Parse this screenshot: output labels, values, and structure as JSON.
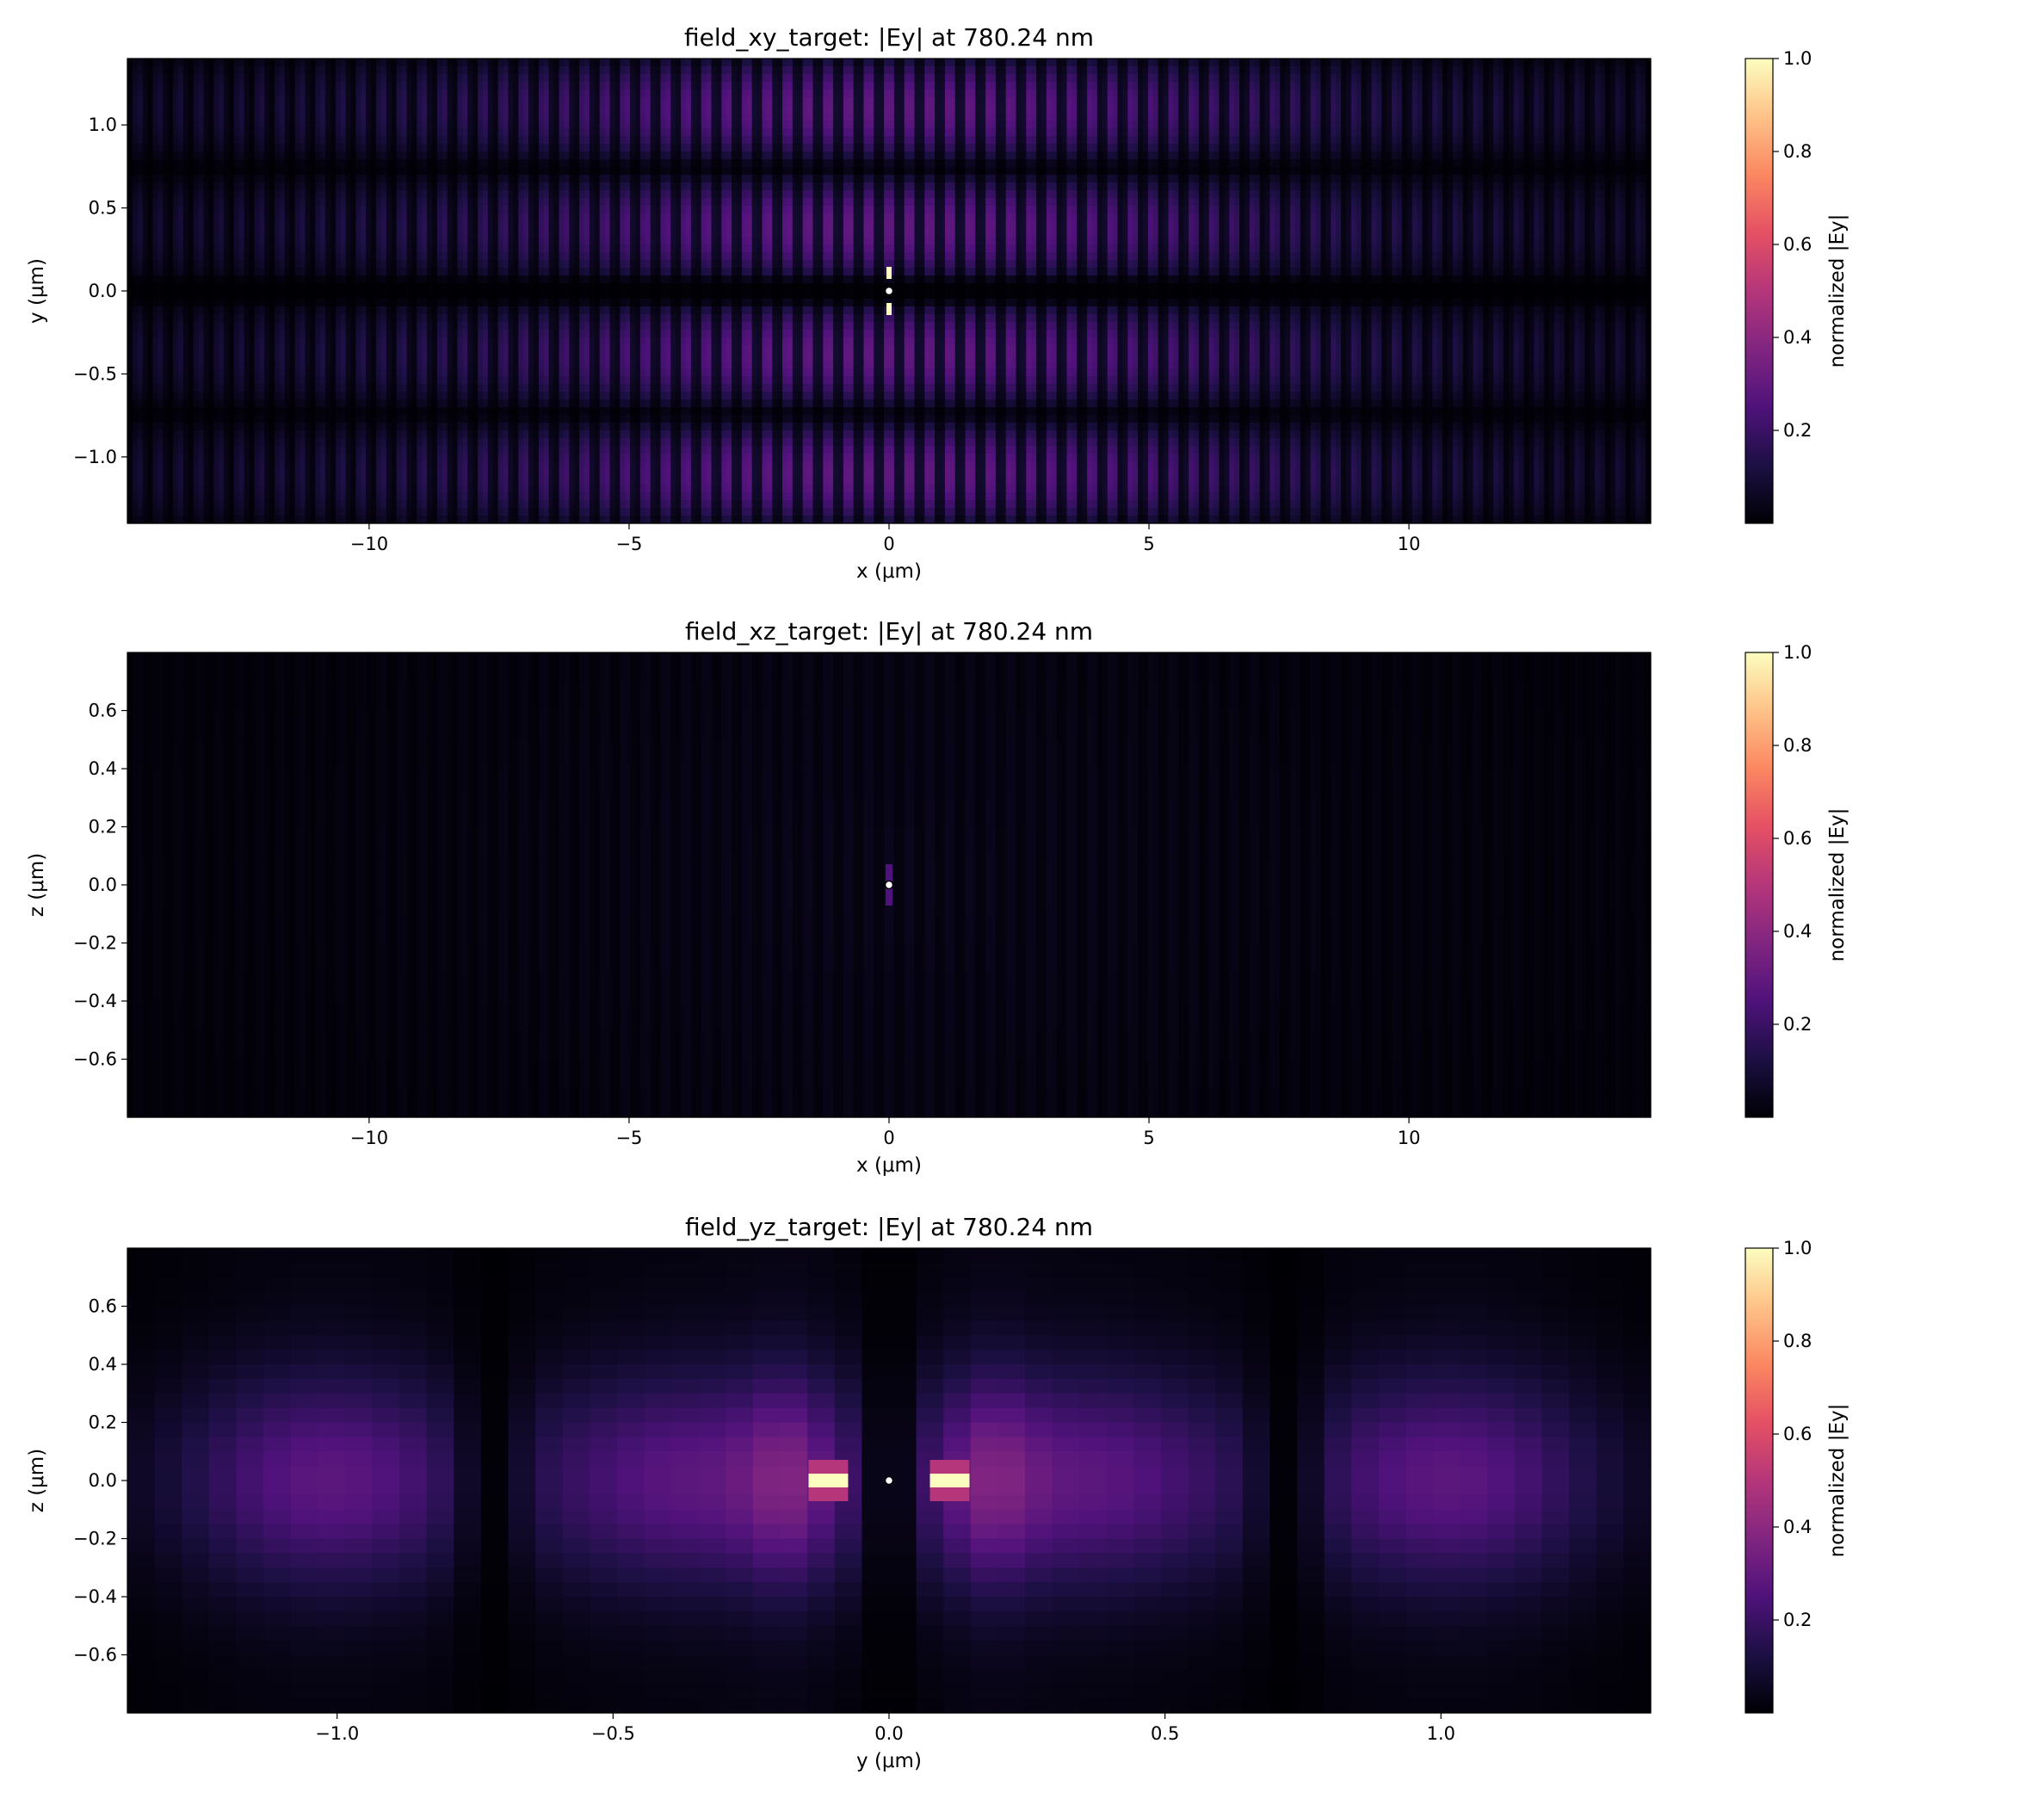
{
  "figure": {
    "colormap": "magma",
    "colormap_stops": [
      "#000004",
      "#1c1044",
      "#4f127b",
      "#812581",
      "#b5367a",
      "#e55064",
      "#fb8761",
      "#fec287",
      "#fcfdbf"
    ],
    "marker_colors": {
      "fill": "#ffffff",
      "edge": "#000000"
    }
  },
  "chart_data": [
    {
      "type": "heatmap",
      "title": "field_xy_target: |Ey| at 780.24 nm",
      "xlabel": "x (μm)",
      "ylabel": "y (μm)",
      "xlim": [
        -14.65,
        14.65
      ],
      "ylim": [
        -1.4,
        1.4
      ],
      "xticks": [
        -10,
        -5,
        0,
        5,
        10
      ],
      "xtick_labels": [
        "−10",
        "−5",
        "0",
        "5",
        "10"
      ],
      "yticks": [
        -1.0,
        -0.5,
        0.0,
        0.5,
        1.0
      ],
      "ytick_labels": [
        "−1.0",
        "−0.5",
        "0.0",
        "0.5",
        "1.0"
      ],
      "grid": false,
      "field_model": {
        "kind": "standing_wave_xy",
        "x_period_um": 0.39,
        "y_lobe_spacing_um": 0.72,
        "envelope_sigma_um": 6.0,
        "peak_level": 0.28
      },
      "hotspot": {
        "x": 0,
        "y": 0,
        "value": 1.0
      },
      "marker": {
        "x": 0,
        "y": 0
      },
      "colorbar": {
        "label": "normalized |Ey|",
        "range": [
          0.0,
          1.0
        ],
        "ticks": [
          0.2,
          0.4,
          0.6,
          0.8,
          1.0
        ],
        "tick_labels": [
          "0.2",
          "0.4",
          "0.6",
          "0.8",
          "1.0"
        ]
      }
    },
    {
      "type": "heatmap",
      "title": "field_xz_target: |Ey| at 780.24 nm",
      "xlabel": "x (μm)",
      "ylabel": "z (μm)",
      "xlim": [
        -14.65,
        14.65
      ],
      "ylim": [
        -0.8,
        0.8
      ],
      "xticks": [
        -10,
        -5,
        0,
        5,
        10
      ],
      "xtick_labels": [
        "−10",
        "−5",
        "0",
        "5",
        "10"
      ],
      "yticks": [
        -0.6,
        -0.4,
        -0.2,
        0.0,
        0.2,
        0.4,
        0.6
      ],
      "ytick_labels": [
        "−0.6",
        "−0.4",
        "−0.2",
        "0.0",
        "0.2",
        "0.4",
        "0.6"
      ],
      "grid": false,
      "field_model": {
        "kind": "faint_fringes_xz",
        "x_period_um": 0.39,
        "envelope_sigma_um": 6.0,
        "peak_level": 0.05
      },
      "hotspot": {
        "x": 0,
        "z": 0,
        "value": 0.25
      },
      "marker": {
        "x": 0,
        "z": 0
      },
      "colorbar": {
        "label": "normalized |Ey|",
        "range": [
          0.0,
          1.0
        ],
        "ticks": [
          0.2,
          0.4,
          0.6,
          0.8,
          1.0
        ],
        "tick_labels": [
          "0.2",
          "0.4",
          "0.6",
          "0.8",
          "1.0"
        ]
      }
    },
    {
      "type": "heatmap",
      "title": "field_yz_target: |Ey| at 780.24 nm",
      "xlabel": "y (μm)",
      "ylabel": "z (μm)",
      "xlim": [
        -1.38,
        1.38
      ],
      "ylim": [
        -0.8,
        0.8
      ],
      "xticks": [
        -1.0,
        -0.5,
        0.0,
        0.5,
        1.0
      ],
      "xtick_labels": [
        "−1.0",
        "−0.5",
        "0.0",
        "0.5",
        "1.0"
      ],
      "yticks": [
        -0.6,
        -0.4,
        -0.2,
        0.0,
        0.2,
        0.4,
        0.6
      ],
      "ytick_labels": [
        "−0.6",
        "−0.4",
        "−0.2",
        "0.0",
        "0.2",
        "0.4",
        "0.6"
      ],
      "grid": false,
      "field_model": {
        "kind": "lobes_yz",
        "lobe_centers_um": [
          -1.02,
          -0.35,
          0.35,
          1.02
        ],
        "nulls_um": [
          -0.72,
          0.72
        ],
        "peak_level": 0.28
      },
      "hotspots": [
        {
          "y": -0.11,
          "z": 0,
          "value": 1.0
        },
        {
          "y": 0.11,
          "z": 0,
          "value": 1.0
        }
      ],
      "marker": {
        "y": 0,
        "z": 0
      },
      "colorbar": {
        "label": "normalized |Ey|",
        "range": [
          0.0,
          1.0
        ],
        "ticks": [
          0.2,
          0.4,
          0.6,
          0.8,
          1.0
        ],
        "tick_labels": [
          "0.2",
          "0.4",
          "0.6",
          "0.8",
          "1.0"
        ]
      }
    }
  ]
}
